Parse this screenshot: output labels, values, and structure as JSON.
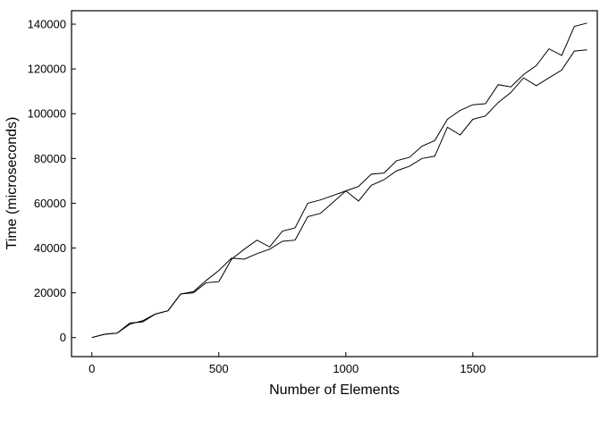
{
  "chart_data": {
    "type": "line",
    "title": "",
    "xlabel": "Number of Elements",
    "ylabel": "Time (microseconds)",
    "xlim": [
      -80,
      1990
    ],
    "ylim": [
      -8500,
      146000
    ],
    "xticks": [
      0,
      500,
      1000,
      1500
    ],
    "yticks": [
      0,
      20000,
      40000,
      60000,
      80000,
      100000,
      120000,
      140000
    ],
    "xtick_labels": [
      "0",
      "500",
      "1000",
      "1500"
    ],
    "ytick_labels": [
      "0",
      "20000",
      "40000",
      "60000",
      "80000",
      "100000",
      "120000",
      "140000"
    ],
    "grid": false,
    "legend": "none",
    "line_color": "#000000",
    "series": [
      {
        "x": [
          0,
          50,
          100,
          150,
          200,
          250,
          300,
          350,
          400,
          450,
          500,
          550,
          600,
          650,
          700,
          750,
          800,
          850,
          900,
          950,
          1000,
          1050,
          1100,
          1150,
          1200,
          1250,
          1300,
          1350,
          1400,
          1450,
          1500,
          1550,
          1600,
          1650,
          1700,
          1750,
          1800,
          1850,
          1900,
          1950
        ],
        "y": [
          0,
          1500,
          2000,
          6000,
          7500,
          10500,
          12000,
          19500,
          20500,
          25500,
          30000,
          35500,
          35000,
          37500,
          39500,
          43000,
          43500,
          54000,
          55500,
          60500,
          65500,
          61000,
          68000,
          70500,
          74500,
          76500,
          80000,
          81000,
          94000,
          90500,
          97500,
          99000,
          105000,
          109500,
          116000,
          112500,
          116000,
          119500,
          128000,
          128500
        ]
      },
      {
        "x": [
          0,
          50,
          100,
          150,
          200,
          250,
          300,
          350,
          400,
          450,
          500,
          550,
          600,
          650,
          700,
          750,
          800,
          850,
          900,
          950,
          1000,
          1050,
          1100,
          1150,
          1200,
          1250,
          1300,
          1350,
          1400,
          1450,
          1500,
          1550,
          1600,
          1650,
          1700,
          1750,
          1800,
          1850,
          1900,
          1950
        ],
        "y": [
          0,
          1500,
          2000,
          6500,
          7000,
          10500,
          12000,
          19500,
          20000,
          24500,
          25000,
          35000,
          39500,
          43500,
          40500,
          47500,
          49000,
          60000,
          61500,
          63500,
          65500,
          67500,
          73000,
          73500,
          79000,
          80500,
          85500,
          88000,
          97500,
          101500,
          104000,
          104500,
          113000,
          112000,
          117500,
          121500,
          129000,
          126000,
          139000,
          140500
        ]
      }
    ]
  }
}
